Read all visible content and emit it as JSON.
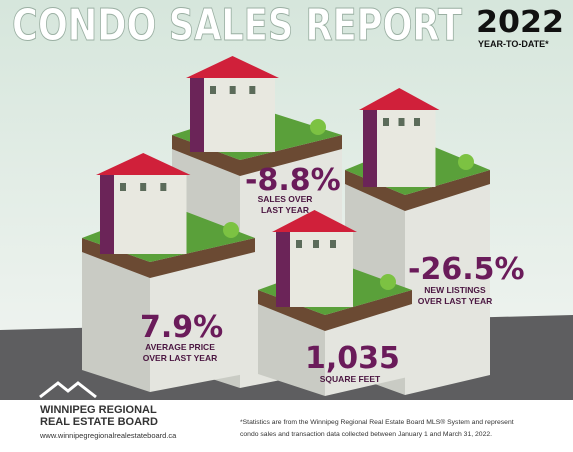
{
  "header": {
    "title": "CONDO SALES REPORT",
    "year": "2022",
    "subtitle": "YEAR-TO-DATE*"
  },
  "stats": [
    {
      "value": "-8.8%",
      "label": [
        "SALES OVER",
        "LAST YEAR"
      ]
    },
    {
      "value": "7.9%",
      "label": [
        "AVERAGE PRICE",
        "OVER LAST YEAR"
      ]
    },
    {
      "value": "1,035",
      "label": [
        "SQUARE FEET"
      ]
    },
    {
      "value": "-26.5%",
      "label": [
        "NEW LISTINGS",
        "OVER LAST YEAR"
      ]
    }
  ],
  "logo": {
    "name": [
      "WINNIPEG REGIONAL",
      "REAL ESTATE BOARD"
    ],
    "url": "www.winnipegregionalrealestateboard.ca"
  },
  "footnote": [
    "*Statistics are from the Winnipeg Regional Real Estate Board MLS® System and represent",
    "condo sales and transaction data collected between January 1 and March 31, 2022."
  ]
}
